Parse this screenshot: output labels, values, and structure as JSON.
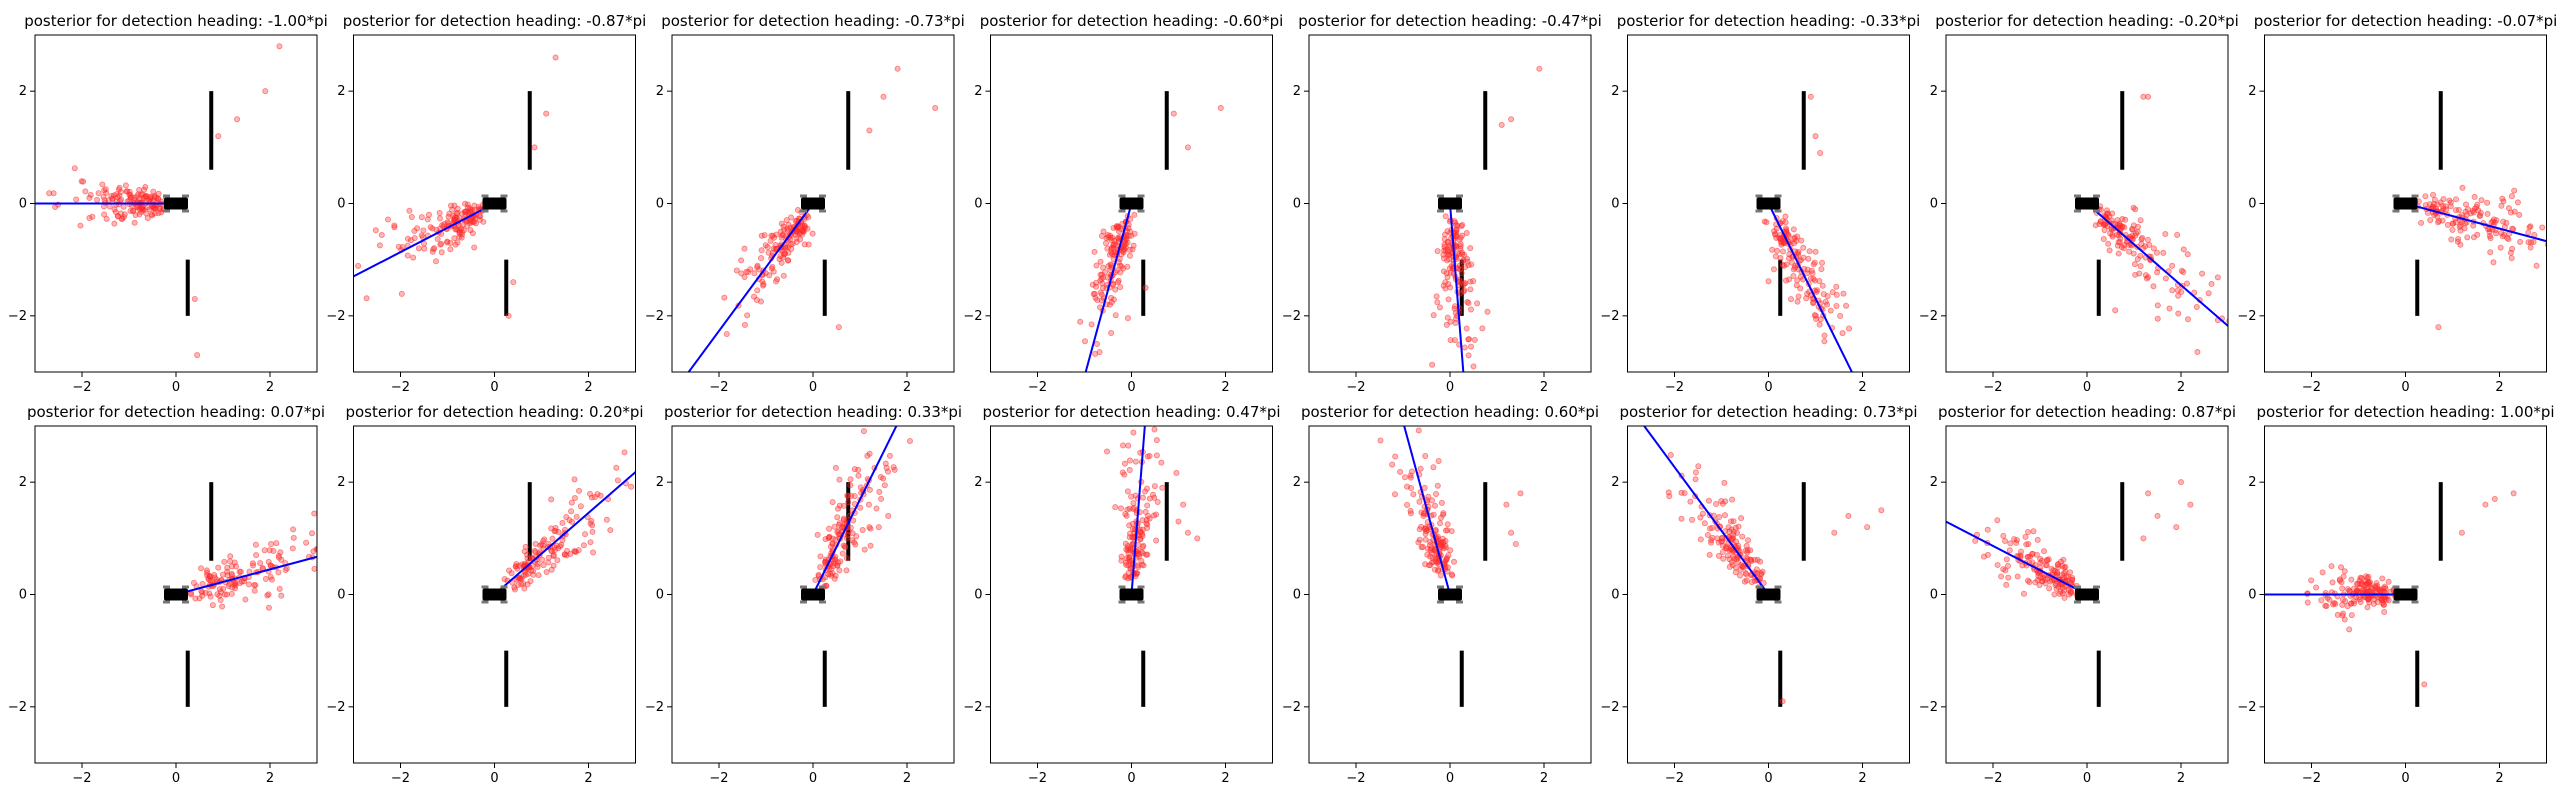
{
  "figure": {
    "colors": {
      "scatter": "#ff2a2a",
      "heading_line": "#0000ff",
      "walls": "#000000",
      "sensor": "#000000",
      "sensor_wheels": "#777777"
    }
  },
  "chart_data": {
    "type": "scatter",
    "layout": "2 rows x 8 columns",
    "x_range": [
      -3,
      3
    ],
    "y_range": [
      -3,
      3
    ],
    "xticks": [
      -2,
      0,
      2
    ],
    "yticks": [
      -2,
      0,
      2
    ],
    "tick_labels": [
      "−2",
      "0",
      "2"
    ],
    "grid": false,
    "legend": "none",
    "sensor_position": [
      0,
      0
    ],
    "walls": [
      {
        "x": 0.75,
        "y": [
          0.6,
          2.0
        ]
      },
      {
        "x": 0.25,
        "y": [
          -2.0,
          -1.0
        ]
      }
    ],
    "panels": [
      {
        "title": "posterior for detection heading:  -1.00*pi",
        "heading_pi": -1.0,
        "spread": 1.5,
        "reflections": [
          [
            0.9,
            1.2
          ],
          [
            1.3,
            1.5
          ],
          [
            1.9,
            2.0
          ],
          [
            2.2,
            2.8
          ],
          [
            0.4,
            -1.7
          ],
          [
            0.45,
            -2.7
          ]
        ]
      },
      {
        "title": "posterior for detection heading:  -0.87*pi",
        "heading_pi": -0.87,
        "spread": 1.6,
        "reflections": [
          [
            0.85,
            1.0
          ],
          [
            1.1,
            1.6
          ],
          [
            1.3,
            2.6
          ],
          [
            0.3,
            -2.0
          ],
          [
            0.4,
            -1.4
          ]
        ]
      },
      {
        "title": "posterior for detection heading:  -0.73*pi",
        "heading_pi": -0.73,
        "spread": 1.7,
        "reflections": [
          [
            1.2,
            1.3
          ],
          [
            1.5,
            1.9
          ],
          [
            1.8,
            2.4
          ],
          [
            2.6,
            1.7
          ],
          [
            0.55,
            -2.2
          ]
        ]
      },
      {
        "title": "posterior for detection heading:  -0.60*pi",
        "heading_pi": -0.6,
        "spread": 1.8,
        "reflections": [
          [
            0.9,
            1.6
          ],
          [
            1.2,
            1.0
          ],
          [
            1.9,
            1.7
          ],
          [
            0.3,
            -1.5
          ]
        ]
      },
      {
        "title": "posterior for detection heading:  -0.47*pi",
        "heading_pi": -0.47,
        "spread": 2.0,
        "reflections": [
          [
            1.1,
            1.4
          ],
          [
            1.3,
            1.5
          ],
          [
            1.9,
            2.4
          ],
          [
            0.5,
            -2.9
          ]
        ]
      },
      {
        "title": "posterior for detection heading:  -0.33*pi",
        "heading_pi": -0.33,
        "spread": 2.1,
        "reflections": [
          [
            1.0,
            1.2
          ],
          [
            1.1,
            0.9
          ],
          [
            0.9,
            1.9
          ]
        ]
      },
      {
        "title": "posterior for detection heading:  -0.20*pi",
        "heading_pi": -0.2,
        "spread": 2.3,
        "reflections": [
          [
            1.2,
            1.9
          ],
          [
            1.3,
            1.9
          ],
          [
            0.6,
            -1.9
          ]
        ]
      },
      {
        "title": "posterior for detection heading:  -0.07*pi",
        "heading_pi": -0.07,
        "spread": 2.4,
        "reflections": [
          [
            0.7,
            -2.2
          ]
        ]
      },
      {
        "title": "posterior for detection heading:  0.07*pi",
        "heading_pi": 0.07,
        "spread": 2.4,
        "reflections": []
      },
      {
        "title": "posterior for detection heading:  0.20*pi",
        "heading_pi": 0.2,
        "spread": 2.3,
        "reflections": []
      },
      {
        "title": "posterior for detection heading:  0.33*pi",
        "heading_pi": 0.33,
        "spread": 2.1,
        "reflections": [
          [
            1.2,
            1.2
          ],
          [
            1.4,
            1.2
          ],
          [
            1.6,
            1.4
          ],
          [
            1.1,
            0.8
          ]
        ]
      },
      {
        "title": "posterior for detection heading:  0.47*pi",
        "heading_pi": 0.47,
        "spread": 2.0,
        "reflections": [
          [
            1.0,
            1.3
          ],
          [
            1.2,
            1.1
          ],
          [
            1.4,
            1.0
          ],
          [
            1.1,
            1.6
          ]
        ]
      },
      {
        "title": "posterior for detection heading:  0.60*pi",
        "heading_pi": 0.6,
        "spread": 1.9,
        "reflections": [
          [
            1.2,
            1.6
          ],
          [
            1.3,
            1.1
          ],
          [
            1.5,
            1.8
          ],
          [
            1.4,
            0.9
          ]
        ]
      },
      {
        "title": "posterior for detection heading:  0.73*pi",
        "heading_pi": 0.73,
        "spread": 1.8,
        "reflections": [
          [
            1.4,
            1.1
          ],
          [
            1.7,
            1.4
          ],
          [
            2.1,
            1.2
          ],
          [
            2.4,
            1.5
          ],
          [
            0.3,
            -1.9
          ]
        ]
      },
      {
        "title": "posterior for detection heading:  0.87*pi",
        "heading_pi": 0.87,
        "spread": 1.6,
        "reflections": [
          [
            1.2,
            1.0
          ],
          [
            1.5,
            1.4
          ],
          [
            1.3,
            1.8
          ],
          [
            2.0,
            2.0
          ],
          [
            1.9,
            1.2
          ],
          [
            2.2,
            1.6
          ]
        ]
      },
      {
        "title": "posterior for detection heading:  1.00*pi",
        "heading_pi": 1.0,
        "spread": 1.5,
        "reflections": [
          [
            1.2,
            1.1
          ],
          [
            1.7,
            1.6
          ],
          [
            1.9,
            1.7
          ],
          [
            2.3,
            1.8
          ],
          [
            0.4,
            -1.6
          ]
        ]
      }
    ]
  }
}
